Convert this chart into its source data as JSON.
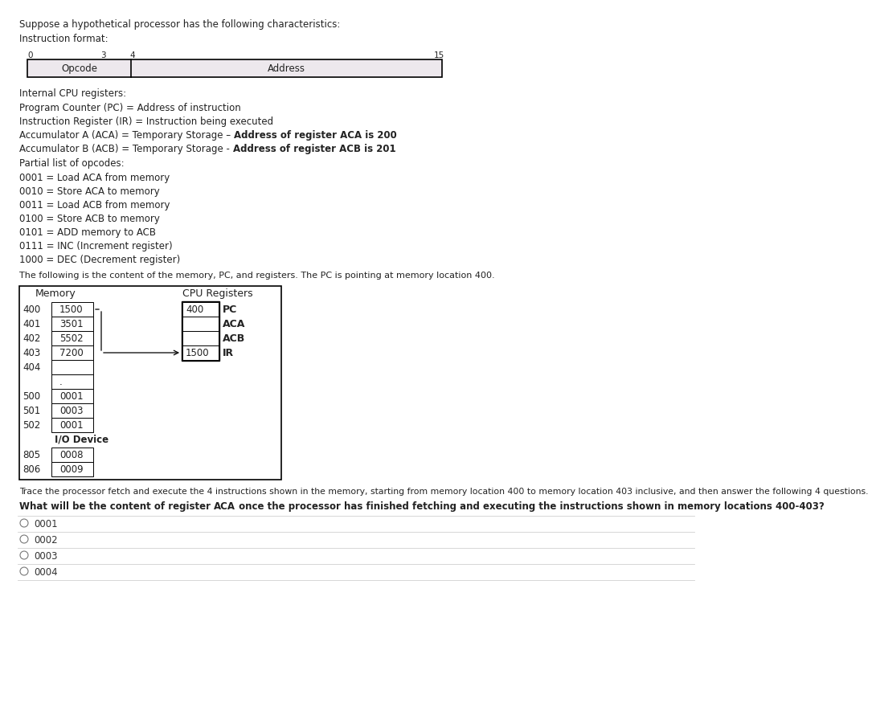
{
  "bg_color": "#ffffff",
  "title_text": "Suppose a hypothetical processor has the following characteristics:",
  "instruction_format_label": "Instruction format:",
  "opcode_label": "Opcode",
  "address_label": "Address",
  "internal_cpu_label": "Internal CPU registers:",
  "register_line1": "Program Counter (PC) = Address of instruction",
  "register_line2": "Instruction Register (IR) = Instruction being executed",
  "register_line3_pre": "Accumulator A (ACA) = Temporary Storage – ",
  "register_line3_bold": "Address of register ACA is 200",
  "register_line4_pre": "Accumulator B (ACB) = Temporary Storage - ",
  "register_line4_bold": "Address of register ACB is 201",
  "partial_opcodes_label": "Partial list of opcodes:",
  "opcodes": [
    "0001 = Load ACA from memory",
    "0010 = Store ACA to memory",
    "0011 = Load ACB from memory",
    "0100 = Store ACB to memory",
    "0101 = ADD memory to ACB",
    "0111 = INC (Increment register)",
    "1000 = DEC (Decrement register)"
  ],
  "memory_intro": "The following is the content of the memory, PC, and registers. The PC is pointing at memory location 400.",
  "memory_header": "Memory",
  "cpu_header": "CPU Registers",
  "memory_rows": [
    [
      "400",
      "1500"
    ],
    [
      "401",
      "3501"
    ],
    [
      "402",
      "5502"
    ],
    [
      "403",
      "7200"
    ],
    [
      "404",
      ""
    ],
    [
      "",
      "."
    ],
    [
      "500",
      "0001"
    ],
    [
      "501",
      "0003"
    ],
    [
      "502",
      "0001"
    ]
  ],
  "io_device_label": "I/O Device",
  "io_rows": [
    [
      "805",
      "0008"
    ],
    [
      "806",
      "0009"
    ]
  ],
  "cpu_rows": [
    [
      "400",
      "PC"
    ],
    [
      "",
      "ACA"
    ],
    [
      "",
      "ACB"
    ],
    [
      "1500",
      "IR"
    ]
  ],
  "trace_text": "Trace the processor fetch and execute the 4 instructions shown in the memory, starting from memory location 400 to memory location 403 inclusive, and then answer the following 4 questions.",
  "question_pre": "What will be the content of register ",
  "question_bold": "ACA",
  "question_post": " once the processor has finished fetching and executing the instructions shown in memory locations 400-403?",
  "question_label_bold": "What will be the content of register ACA once the processor has finished fetching and executing the instructions shown in memory locations 400-403?",
  "options": [
    "0001",
    "0002",
    "0003",
    "0004"
  ]
}
